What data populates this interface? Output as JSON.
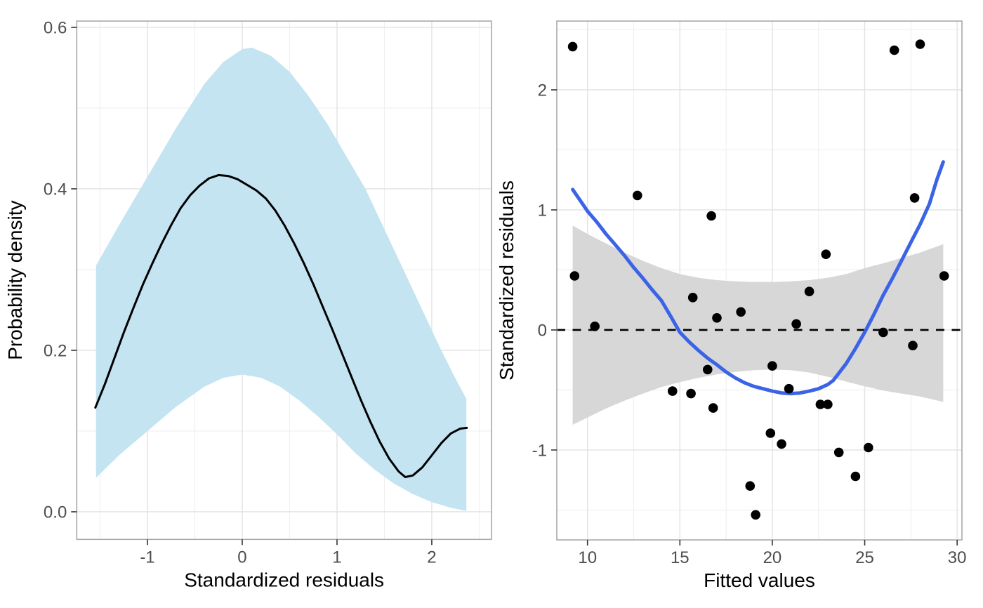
{
  "page": {
    "background": "#ffffff"
  },
  "chart_data": [
    {
      "id": "density-plot",
      "type": "area",
      "title": "",
      "xlabel": "Standardized residuals",
      "ylabel": "Probability density",
      "xlim": [
        -1.746,
        2.63
      ],
      "ylim": [
        -0.0342,
        0.6078
      ],
      "grid": "on",
      "x_ticks": [
        -1,
        0,
        1,
        2
      ],
      "x_tick_labels": [
        "-1",
        "0",
        "1",
        "2"
      ],
      "y_ticks": [
        0.0,
        0.2,
        0.4,
        0.6
      ],
      "y_tick_labels": [
        "0.0",
        "0.2",
        "0.4",
        "0.6"
      ],
      "x_minor": [
        -1.5,
        -0.5,
        0.5,
        1.5,
        2.5
      ],
      "y_minor": [
        0.1,
        0.3,
        0.5
      ],
      "ribbon": {
        "color": "#c4e4f2",
        "upper": [
          [
            -1.543,
            0.305
          ],
          [
            -1.3,
            0.355
          ],
          [
            -1.0,
            0.415
          ],
          [
            -0.7,
            0.475
          ],
          [
            -0.4,
            0.53
          ],
          [
            -0.2,
            0.557
          ],
          [
            0.0,
            0.573
          ],
          [
            0.1,
            0.575
          ],
          [
            0.3,
            0.565
          ],
          [
            0.5,
            0.545
          ],
          [
            0.7,
            0.515
          ],
          [
            0.9,
            0.48
          ],
          [
            1.1,
            0.44
          ],
          [
            1.3,
            0.4
          ],
          [
            1.5,
            0.35
          ],
          [
            1.7,
            0.3
          ],
          [
            1.9,
            0.25
          ],
          [
            2.1,
            0.2
          ],
          [
            2.25,
            0.165
          ],
          [
            2.365,
            0.14
          ]
        ],
        "lower": [
          [
            -1.543,
            0.042
          ],
          [
            -1.3,
            0.07
          ],
          [
            -1.0,
            0.1
          ],
          [
            -0.7,
            0.13
          ],
          [
            -0.4,
            0.155
          ],
          [
            -0.2,
            0.166
          ],
          [
            0.0,
            0.17
          ],
          [
            0.2,
            0.166
          ],
          [
            0.4,
            0.155
          ],
          [
            0.6,
            0.138
          ],
          [
            0.8,
            0.118
          ],
          [
            1.0,
            0.096
          ],
          [
            1.2,
            0.072
          ],
          [
            1.4,
            0.052
          ],
          [
            1.6,
            0.035
          ],
          [
            1.8,
            0.022
          ],
          [
            2.0,
            0.012
          ],
          [
            2.2,
            0.005
          ],
          [
            2.365,
            0.001
          ]
        ]
      },
      "line": {
        "color": "#000000",
        "width": 3,
        "points": [
          [
            -1.55,
            0.129
          ],
          [
            -1.45,
            0.158
          ],
          [
            -1.35,
            0.19
          ],
          [
            -1.25,
            0.222
          ],
          [
            -1.15,
            0.252
          ],
          [
            -1.05,
            0.281
          ],
          [
            -0.95,
            0.307
          ],
          [
            -0.85,
            0.332
          ],
          [
            -0.75,
            0.355
          ],
          [
            -0.65,
            0.376
          ],
          [
            -0.55,
            0.392
          ],
          [
            -0.45,
            0.404
          ],
          [
            -0.35,
            0.413
          ],
          [
            -0.25,
            0.417
          ],
          [
            -0.15,
            0.416
          ],
          [
            -0.05,
            0.412
          ],
          [
            0.05,
            0.405
          ],
          [
            0.15,
            0.398
          ],
          [
            0.25,
            0.388
          ],
          [
            0.35,
            0.373
          ],
          [
            0.45,
            0.354
          ],
          [
            0.55,
            0.332
          ],
          [
            0.65,
            0.308
          ],
          [
            0.75,
            0.282
          ],
          [
            0.85,
            0.254
          ],
          [
            0.95,
            0.226
          ],
          [
            1.05,
            0.197
          ],
          [
            1.15,
            0.168
          ],
          [
            1.25,
            0.139
          ],
          [
            1.35,
            0.112
          ],
          [
            1.45,
            0.087
          ],
          [
            1.55,
            0.066
          ],
          [
            1.65,
            0.05
          ],
          [
            1.72,
            0.043
          ],
          [
            1.8,
            0.045
          ],
          [
            1.9,
            0.055
          ],
          [
            2.0,
            0.07
          ],
          [
            2.1,
            0.085
          ],
          [
            2.2,
            0.097
          ],
          [
            2.3,
            0.103
          ],
          [
            2.37,
            0.104
          ]
        ]
      }
    },
    {
      "id": "residual-plot",
      "type": "scatter",
      "title": "",
      "xlabel": "Fitted values",
      "ylabel": "Standardized residuals",
      "xlim": [
        8.34,
        30.26
      ],
      "ylim": [
        -1.749,
        2.573
      ],
      "grid": "on",
      "x_ticks": [
        10,
        15,
        20,
        25,
        30
      ],
      "x_tick_labels": [
        "10",
        "15",
        "20",
        "25",
        "30"
      ],
      "y_ticks": [
        -1,
        0,
        1,
        2
      ],
      "y_tick_labels": [
        "-1",
        "0",
        "1",
        "2"
      ],
      "x_minor": [
        12.5,
        17.5,
        22.5,
        27.5
      ],
      "y_minor": [
        -1.5,
        -0.5,
        0.5,
        1.5,
        2.5
      ],
      "point_color": "#000000",
      "point_radius": 6.8,
      "points": [
        [
          9.2,
          2.36
        ],
        [
          9.3,
          0.45
        ],
        [
          10.4,
          0.03
        ],
        [
          12.7,
          1.12
        ],
        [
          14.6,
          -0.51
        ],
        [
          15.6,
          -0.53
        ],
        [
          15.7,
          0.27
        ],
        [
          16.5,
          -0.33
        ],
        [
          16.7,
          0.95
        ],
        [
          16.8,
          -0.65
        ],
        [
          17.0,
          0.1
        ],
        [
          18.3,
          0.15
        ],
        [
          18.8,
          -1.3
        ],
        [
          19.1,
          -1.54
        ],
        [
          19.9,
          -0.86
        ],
        [
          20.0,
          -0.3
        ],
        [
          20.5,
          -0.95
        ],
        [
          20.9,
          -0.49
        ],
        [
          21.3,
          0.05
        ],
        [
          22.0,
          0.32
        ],
        [
          22.6,
          -0.62
        ],
        [
          22.9,
          0.63
        ],
        [
          23.0,
          -0.62
        ],
        [
          23.6,
          -1.02
        ],
        [
          24.5,
          -1.22
        ],
        [
          25.2,
          -0.98
        ],
        [
          26.0,
          -0.02
        ],
        [
          26.6,
          2.33
        ],
        [
          27.6,
          -0.13
        ],
        [
          27.7,
          1.1
        ],
        [
          28.0,
          2.38
        ],
        [
          29.3,
          0.45
        ]
      ],
      "ribbon": {
        "color": "#d7d7d7",
        "upper": [
          [
            9.2,
            0.87
          ],
          [
            10,
            0.8
          ],
          [
            11,
            0.72
          ],
          [
            12,
            0.645
          ],
          [
            13,
            0.575
          ],
          [
            14,
            0.515
          ],
          [
            15,
            0.465
          ],
          [
            16,
            0.435
          ],
          [
            17,
            0.415
          ],
          [
            18,
            0.405
          ],
          [
            19,
            0.4
          ],
          [
            20,
            0.4
          ],
          [
            21,
            0.405
          ],
          [
            22,
            0.415
          ],
          [
            23,
            0.435
          ],
          [
            24,
            0.465
          ],
          [
            25,
            0.515
          ],
          [
            26,
            0.555
          ],
          [
            27,
            0.6
          ],
          [
            28,
            0.645
          ],
          [
            29.25,
            0.715
          ]
        ],
        "lower": [
          [
            9.2,
            -0.79
          ],
          [
            10,
            -0.73
          ],
          [
            11,
            -0.655
          ],
          [
            12,
            -0.59
          ],
          [
            13,
            -0.53
          ],
          [
            14,
            -0.475
          ],
          [
            15,
            -0.435
          ],
          [
            16,
            -0.4
          ],
          [
            17,
            -0.37
          ],
          [
            18,
            -0.35
          ],
          [
            19,
            -0.335
          ],
          [
            20,
            -0.33
          ],
          [
            21,
            -0.335
          ],
          [
            22,
            -0.355
          ],
          [
            23,
            -0.39
          ],
          [
            24,
            -0.43
          ],
          [
            25,
            -0.47
          ],
          [
            26,
            -0.505
          ],
          [
            27,
            -0.53
          ],
          [
            28,
            -0.555
          ],
          [
            29.25,
            -0.6
          ]
        ]
      },
      "zero_line": {
        "y": 0,
        "color": "#000000",
        "style": "dashed",
        "width": 2.6
      },
      "line": {
        "color": "#3b63e6",
        "width": 5,
        "points": [
          [
            9.2,
            1.17
          ],
          [
            9.6,
            1.08
          ],
          [
            10,
            0.99
          ],
          [
            10.5,
            0.9
          ],
          [
            11,
            0.8
          ],
          [
            11.5,
            0.71
          ],
          [
            12,
            0.62
          ],
          [
            12.5,
            0.52
          ],
          [
            13,
            0.43
          ],
          [
            13.5,
            0.335
          ],
          [
            14,
            0.245
          ],
          [
            14.5,
            0.115
          ],
          [
            15,
            -0.02
          ],
          [
            15.5,
            -0.1
          ],
          [
            16,
            -0.17
          ],
          [
            16.5,
            -0.235
          ],
          [
            17,
            -0.29
          ],
          [
            17.5,
            -0.35
          ],
          [
            18,
            -0.4
          ],
          [
            18.5,
            -0.44
          ],
          [
            19,
            -0.47
          ],
          [
            19.5,
            -0.49
          ],
          [
            20,
            -0.51
          ],
          [
            20.5,
            -0.525
          ],
          [
            21,
            -0.53
          ],
          [
            21.5,
            -0.525
          ],
          [
            22,
            -0.51
          ],
          [
            22.5,
            -0.49
          ],
          [
            23,
            -0.455
          ],
          [
            23.3,
            -0.42
          ],
          [
            23.6,
            -0.36
          ],
          [
            24,
            -0.28
          ],
          [
            24.5,
            -0.155
          ],
          [
            25,
            -0.02
          ],
          [
            25.5,
            0.13
          ],
          [
            26,
            0.29
          ],
          [
            26.5,
            0.43
          ],
          [
            27,
            0.58
          ],
          [
            27.5,
            0.73
          ],
          [
            28,
            0.88
          ],
          [
            28.5,
            1.05
          ],
          [
            28.9,
            1.25
          ],
          [
            29.25,
            1.4
          ]
        ]
      }
    }
  ],
  "style": {
    "panel_background": "#ffffff",
    "panel_border": "#a8a8a8",
    "grid_major": "#e2e2e2",
    "grid_minor": "#efefef",
    "tick_mark": "#333333",
    "tick_label": "#4d4d4d"
  }
}
